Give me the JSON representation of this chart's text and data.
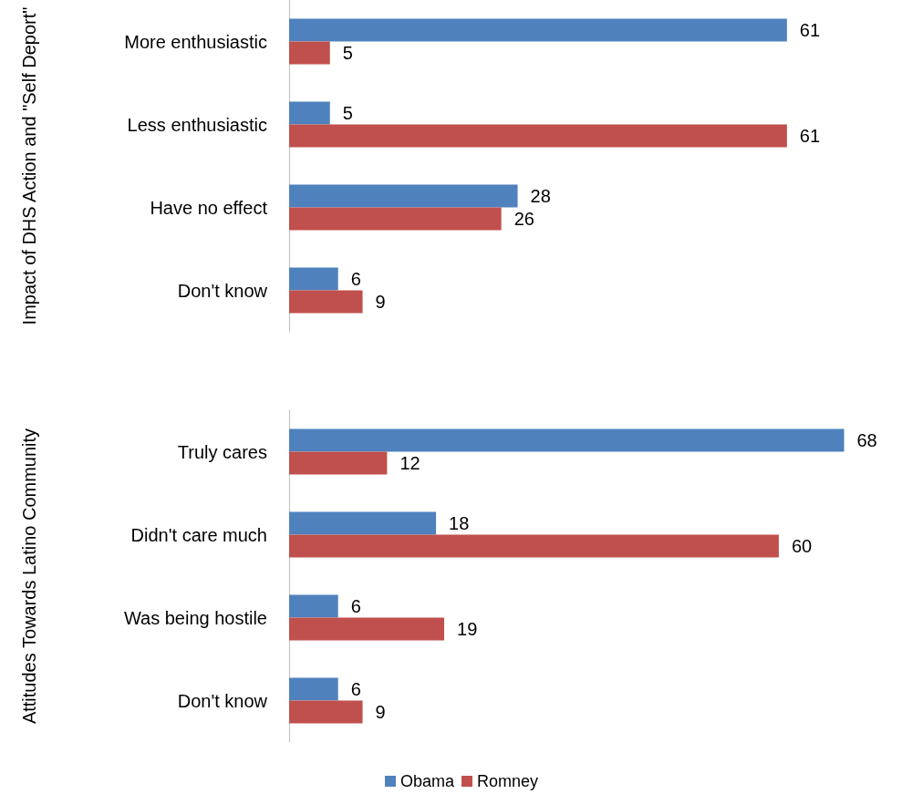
{
  "chart_data": [
    {
      "type": "bar",
      "orientation": "horizontal",
      "ylabel": "Impact of DHS Action and \"Self Deport\"",
      "categories": [
        "More enthusiastic",
        "Less enthusiastic",
        "Have no effect",
        "Don't know"
      ],
      "series": [
        {
          "color": "#4f81bd",
          "values": [
            61,
            5,
            28,
            6
          ]
        },
        {
          "color": "#c0504d",
          "values": [
            5,
            61,
            26,
            9
          ]
        }
      ],
      "data_labels": true,
      "legend": false
    },
    {
      "type": "bar",
      "orientation": "horizontal",
      "ylabel": "Attitudes Towards Latino Community",
      "categories": [
        "Truly cares",
        "Didn't care much",
        "Was being hostile",
        "Don't know"
      ],
      "series": [
        {
          "name": "Obama",
          "color": "#4f81bd",
          "values": [
            68,
            18,
            6,
            6
          ]
        },
        {
          "name": "Romney",
          "color": "#c0504d",
          "values": [
            12,
            60,
            19,
            9
          ]
        }
      ],
      "data_labels": true,
      "legend": "bottom"
    }
  ]
}
